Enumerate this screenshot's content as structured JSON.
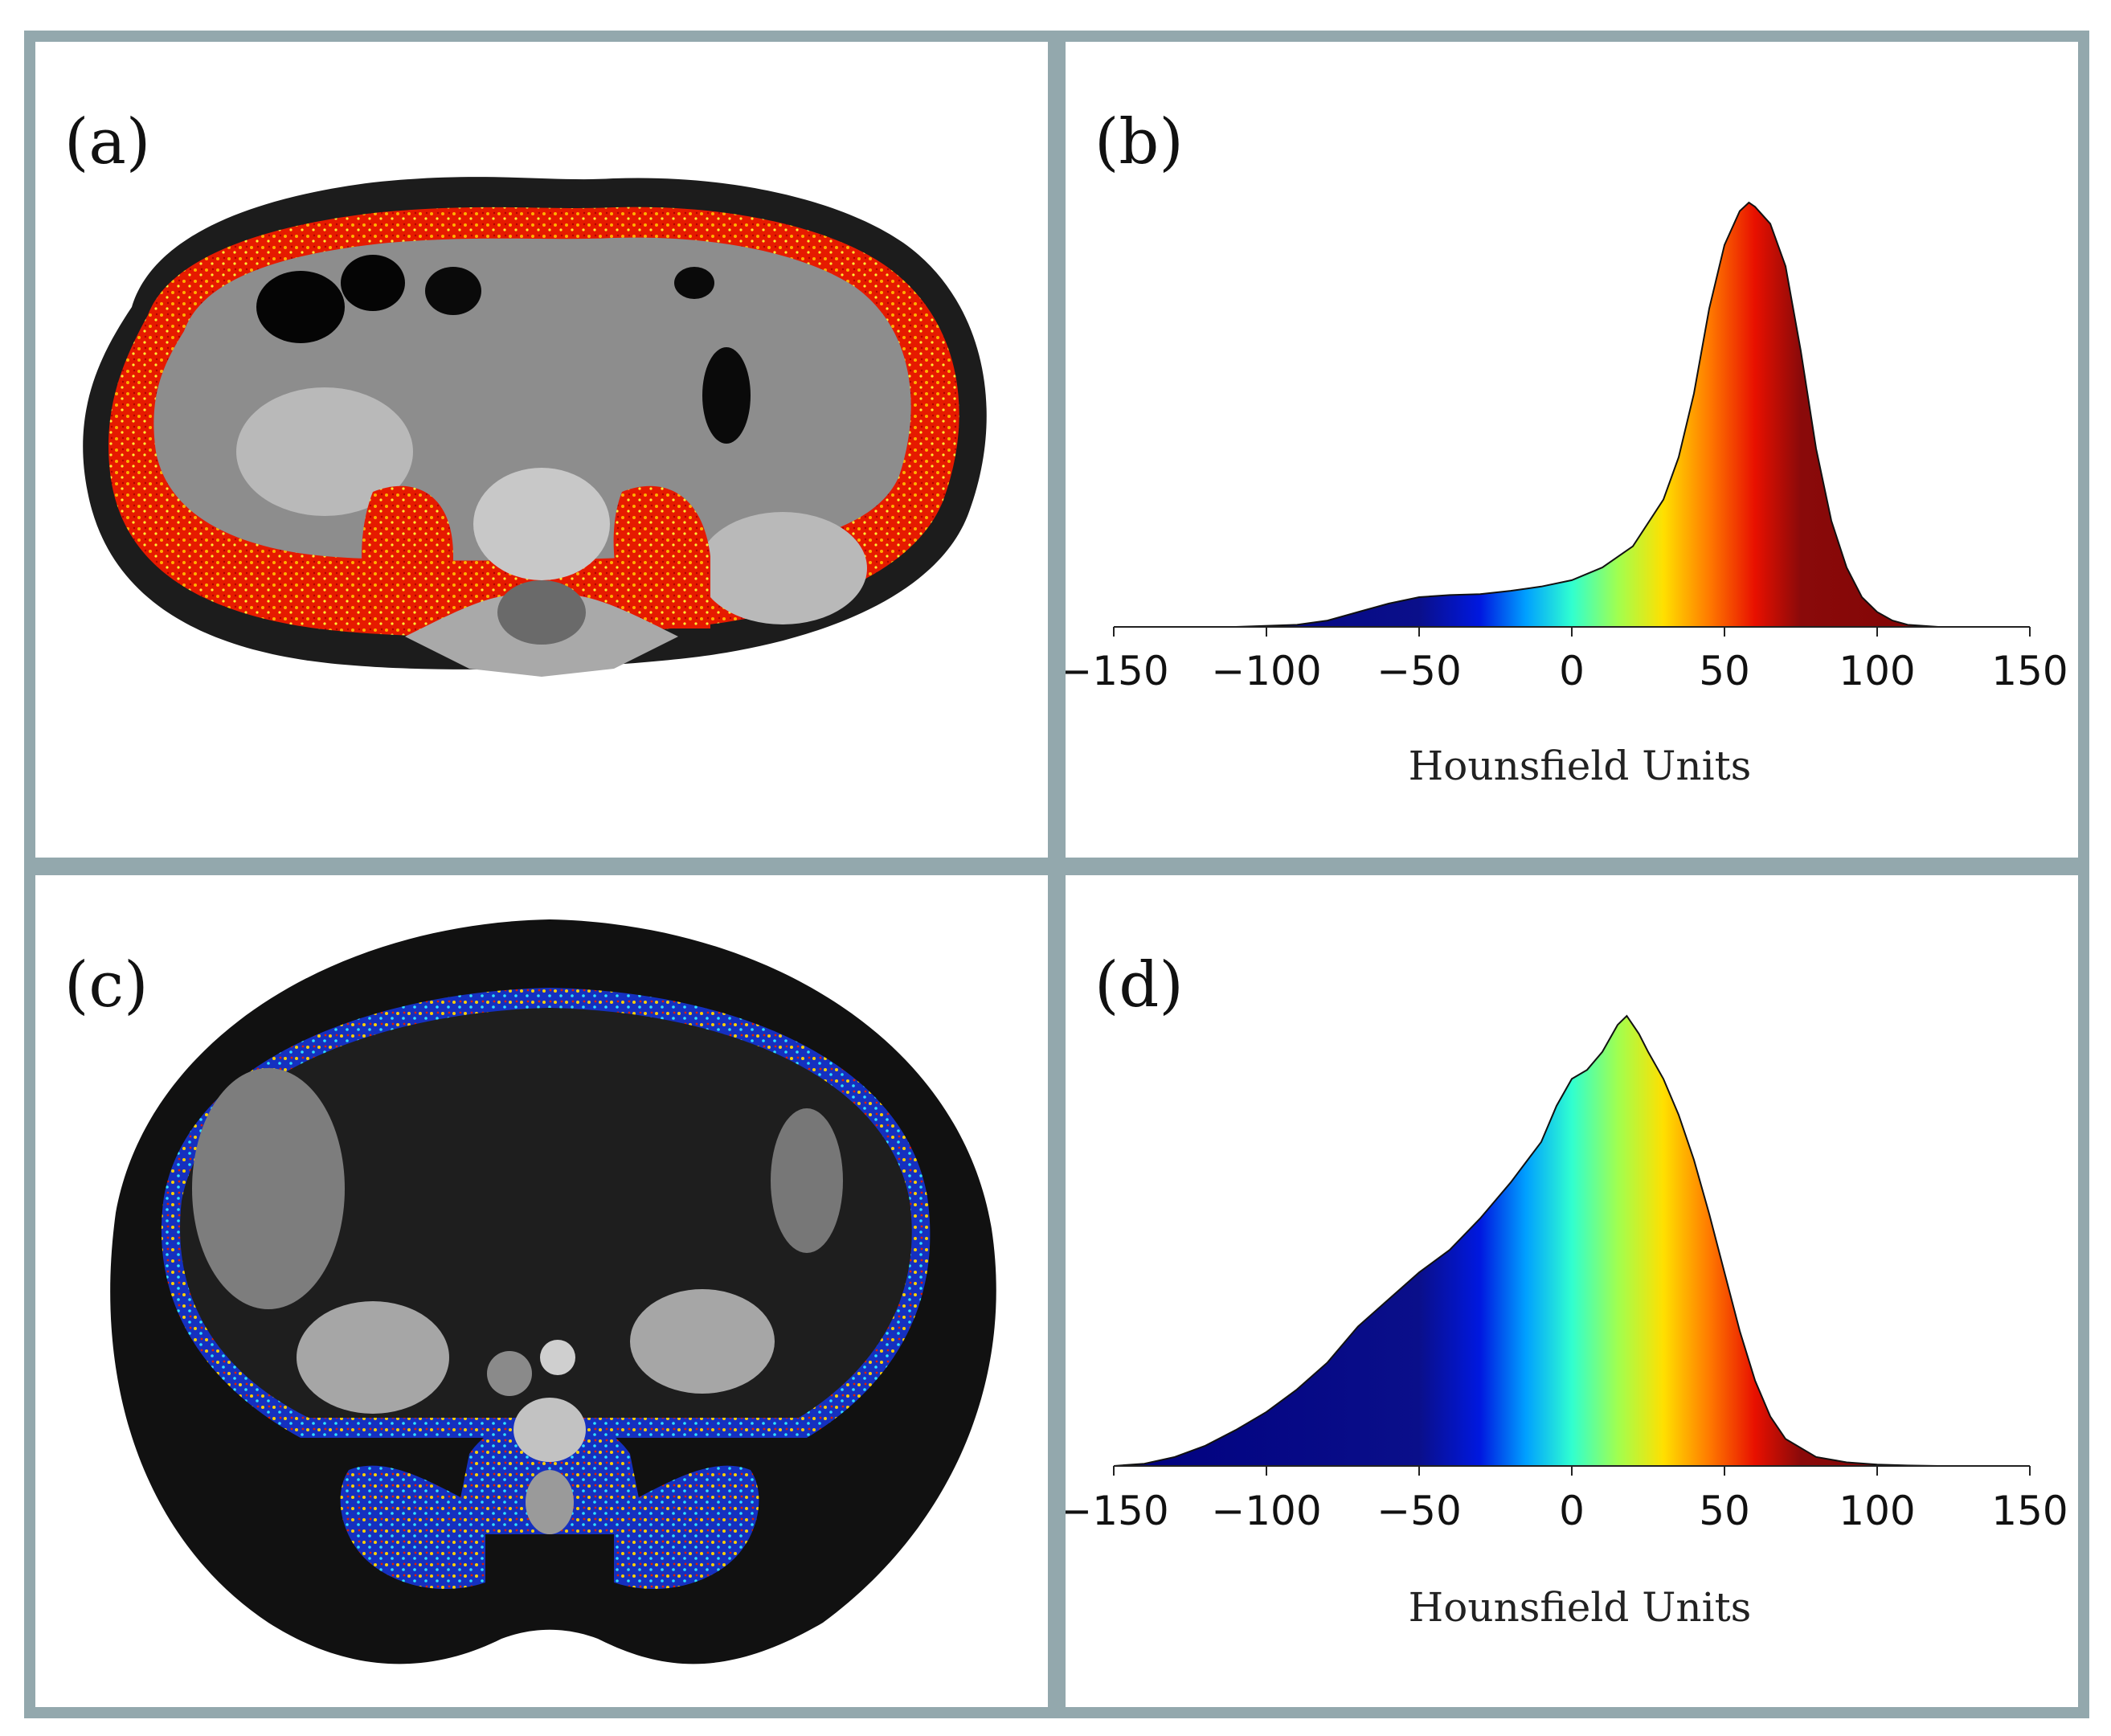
{
  "panels": {
    "a": {
      "label": "(a)",
      "image": "ct-scan-muscle-overlay-lean",
      "colormap": "jet"
    },
    "b": {
      "label": "(b)"
    },
    "c": {
      "label": "(c)",
      "image": "ct-scan-muscle-overlay-obese",
      "colormap": "jet"
    },
    "d": {
      "label": "(d)"
    }
  },
  "colors": {
    "frame": "#93a8ad",
    "ct_body": "#1a1a1a",
    "ct_tissue": "#8a8a8a"
  },
  "chart_data": [
    {
      "type": "area",
      "panel": "b",
      "title": "",
      "xlabel": "Hounsfield Units",
      "ylabel": "",
      "xlim": [
        -150,
        150
      ],
      "xticks": [
        -150,
        -100,
        -50,
        0,
        50,
        100,
        150
      ],
      "xtick_labels": [
        "−150",
        "−100",
        "−50",
        "0",
        "50",
        "100",
        "150"
      ],
      "fill": "jet colormap by HU",
      "x": [
        -150,
        -110,
        -90,
        -80,
        -70,
        -60,
        -50,
        -40,
        -30,
        -20,
        -10,
        0,
        10,
        20,
        30,
        35,
        40,
        45,
        50,
        55,
        58,
        60,
        65,
        70,
        75,
        80,
        85,
        90,
        95,
        100,
        105,
        110,
        120,
        150
      ],
      "y": [
        0,
        0,
        0.005,
        0.015,
        0.035,
        0.055,
        0.07,
        0.075,
        0.077,
        0.085,
        0.095,
        0.11,
        0.14,
        0.19,
        0.3,
        0.4,
        0.55,
        0.75,
        0.9,
        0.98,
        1.0,
        0.99,
        0.95,
        0.85,
        0.65,
        0.42,
        0.25,
        0.14,
        0.07,
        0.035,
        0.015,
        0.005,
        0,
        0
      ]
    },
    {
      "type": "area",
      "panel": "d",
      "title": "",
      "xlabel": "Hounsfield Units",
      "ylabel": "",
      "xlim": [
        -150,
        150
      ],
      "xticks": [
        -150,
        -100,
        -50,
        0,
        50,
        100,
        150
      ],
      "xtick_labels": [
        "−150",
        "−100",
        "−50",
        "0",
        "50",
        "100",
        "150"
      ],
      "fill": "jet colormap by HU",
      "x": [
        -150,
        -140,
        -130,
        -120,
        -110,
        -100,
        -90,
        -80,
        -70,
        -60,
        -50,
        -40,
        -30,
        -20,
        -10,
        -5,
        0,
        5,
        10,
        15,
        18,
        22,
        25,
        30,
        35,
        40,
        45,
        50,
        55,
        60,
        65,
        70,
        80,
        90,
        100,
        110,
        120,
        150
      ],
      "y": [
        0,
        0.005,
        0.02,
        0.045,
        0.08,
        0.12,
        0.17,
        0.23,
        0.31,
        0.37,
        0.43,
        0.48,
        0.55,
        0.63,
        0.72,
        0.8,
        0.86,
        0.88,
        0.92,
        0.98,
        1.0,
        0.96,
        0.92,
        0.86,
        0.78,
        0.68,
        0.56,
        0.43,
        0.3,
        0.19,
        0.11,
        0.06,
        0.02,
        0.008,
        0.003,
        0.001,
        0,
        0
      ]
    }
  ]
}
